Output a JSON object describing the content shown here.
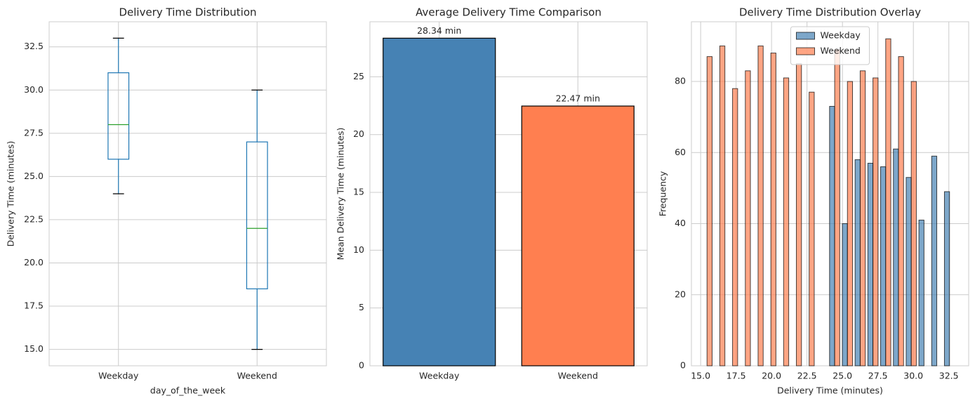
{
  "chart_data": [
    {
      "type": "box",
      "title": "Delivery Time Distribution",
      "xlabel": "day_of_the_week",
      "ylabel": "Delivery Time (minutes)",
      "categories": [
        "Weekday",
        "Weekend"
      ],
      "boxes": [
        {
          "whislo": 24,
          "q1": 26,
          "med": 28,
          "q3": 31,
          "whishi": 33
        },
        {
          "whislo": 15,
          "q1": 18.5,
          "med": 22,
          "q3": 27,
          "whishi": 30
        }
      ],
      "color": "#1f77b4",
      "median_color": "#2ca02c",
      "ylim": [
        14.05,
        33.95
      ],
      "yticks": [
        {
          "value": 15,
          "label": "15.0"
        },
        17.5,
        {
          "value": 20,
          "label": "20.0"
        },
        22.5,
        {
          "value": 25,
          "label": "25.0"
        },
        27.5,
        {
          "value": 30,
          "label": "30.0"
        },
        32.5
      ],
      "grid": true
    },
    {
      "type": "bar",
      "title": "Average Delivery Time Comparison",
      "ylabel": "Mean Delivery Time (minutes)",
      "categories": [
        "Weekday",
        "Weekend"
      ],
      "values": [
        28.34,
        22.47
      ],
      "value_labels": [
        "28.34 min",
        "22.47 min"
      ],
      "colors": [
        "#4682b4",
        "#ff7f50"
      ],
      "ylim": [
        0,
        29.76
      ],
      "yticks": [
        0,
        5,
        10,
        15,
        20,
        25
      ],
      "grid": true
    },
    {
      "type": "histogram",
      "title": "Delivery Time Distribution Overlay",
      "xlabel": "Delivery Time (minutes)",
      "ylabel": "Frequency",
      "bins": [
        15,
        15.9,
        16.8,
        17.7,
        18.6,
        19.5,
        20.4,
        21.3,
        22.2,
        23.1,
        24,
        24.9,
        25.8,
        26.7,
        27.6,
        28.5,
        29.4,
        30.3,
        31.2,
        32.1,
        33
      ],
      "series": [
        {
          "name": "Weekday",
          "color": "#4682b4",
          "values": [
            0,
            0,
            0,
            0,
            0,
            0,
            0,
            0,
            0,
            0,
            73,
            40,
            58,
            57,
            56,
            61,
            53,
            41,
            59,
            49
          ]
        },
        {
          "name": "Weekend",
          "color": "#ff7f50",
          "values": [
            87,
            90,
            78,
            83,
            90,
            88,
            81,
            85,
            77,
            0,
            89,
            80,
            83,
            81,
            92,
            87,
            80,
            0,
            0,
            0
          ]
        }
      ],
      "xlim": [
        14.35,
        33.9
      ],
      "ylim": [
        0,
        96.8
      ],
      "xticks": [
        {
          "value": 15,
          "label": "15.0"
        },
        17.5,
        {
          "value": 20,
          "label": "20.0"
        },
        22.5,
        {
          "value": 25,
          "label": "25.0"
        },
        27.5,
        {
          "value": 30,
          "label": "30.0"
        },
        32.5
      ],
      "yticks": [
        0,
        20,
        40,
        60,
        80
      ],
      "grid": true,
      "legend": "upper center"
    }
  ]
}
